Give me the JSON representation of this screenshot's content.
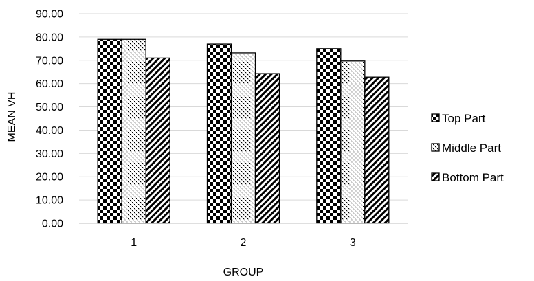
{
  "chart_data": {
    "type": "bar",
    "categories": [
      "1",
      "2",
      "3"
    ],
    "series": [
      {
        "name": "Top Part",
        "values": [
          79.0,
          77.0,
          75.0
        ],
        "pattern": "checker"
      },
      {
        "name": "Middle Part",
        "values": [
          79.0,
          73.2,
          69.7
        ],
        "pattern": "dots"
      },
      {
        "name": "Bottom Part",
        "values": [
          71.0,
          64.3,
          62.8
        ],
        "pattern": "diagonal"
      }
    ],
    "xlabel": "GROUP",
    "ylabel": "MEAN VH",
    "ylim": [
      0,
      90
    ],
    "yticks": [
      "0.00",
      "10.00",
      "20.00",
      "30.00",
      "40.00",
      "50.00",
      "60.00",
      "70.00",
      "80.00",
      "90.00"
    ],
    "grid": true,
    "legend_position": "right",
    "colors": {
      "bar_fill": "#000000",
      "bar_stroke": "#000000",
      "grid": "#d9d9d9",
      "axis": "#bfbfbf",
      "background": "#ffffff"
    }
  }
}
